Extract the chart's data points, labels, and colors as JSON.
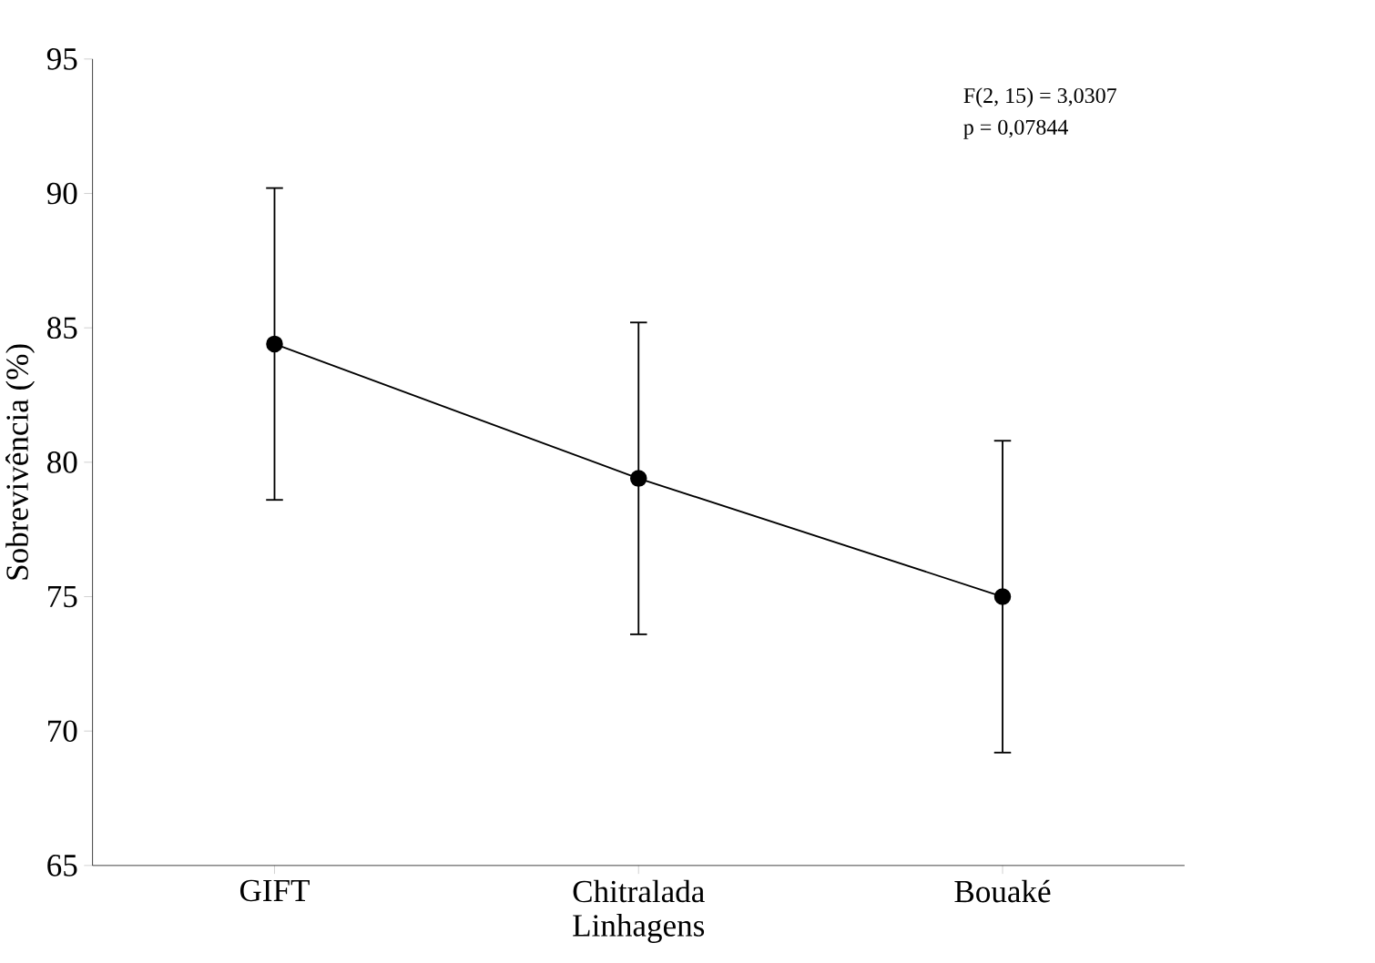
{
  "chart_data": {
    "type": "line",
    "xlabel": "Linhagens",
    "ylabel": "Sobrevivência (%)",
    "categories": [
      "GIFT",
      "Chitralada",
      "Bouaké"
    ],
    "series": [
      {
        "color": "#000000",
        "values": [
          84.4,
          79.4,
          75.0
        ],
        "errors": [
          5.8,
          5.8,
          5.8
        ]
      }
    ],
    "ylim": [
      65,
      95
    ],
    "yticks": [
      65,
      70,
      75,
      80,
      85,
      90,
      95
    ],
    "marker": "circle",
    "line_style": "solid",
    "annotations": [
      "F(2, 15) = 3,0307",
      "p = 0,07844"
    ]
  }
}
